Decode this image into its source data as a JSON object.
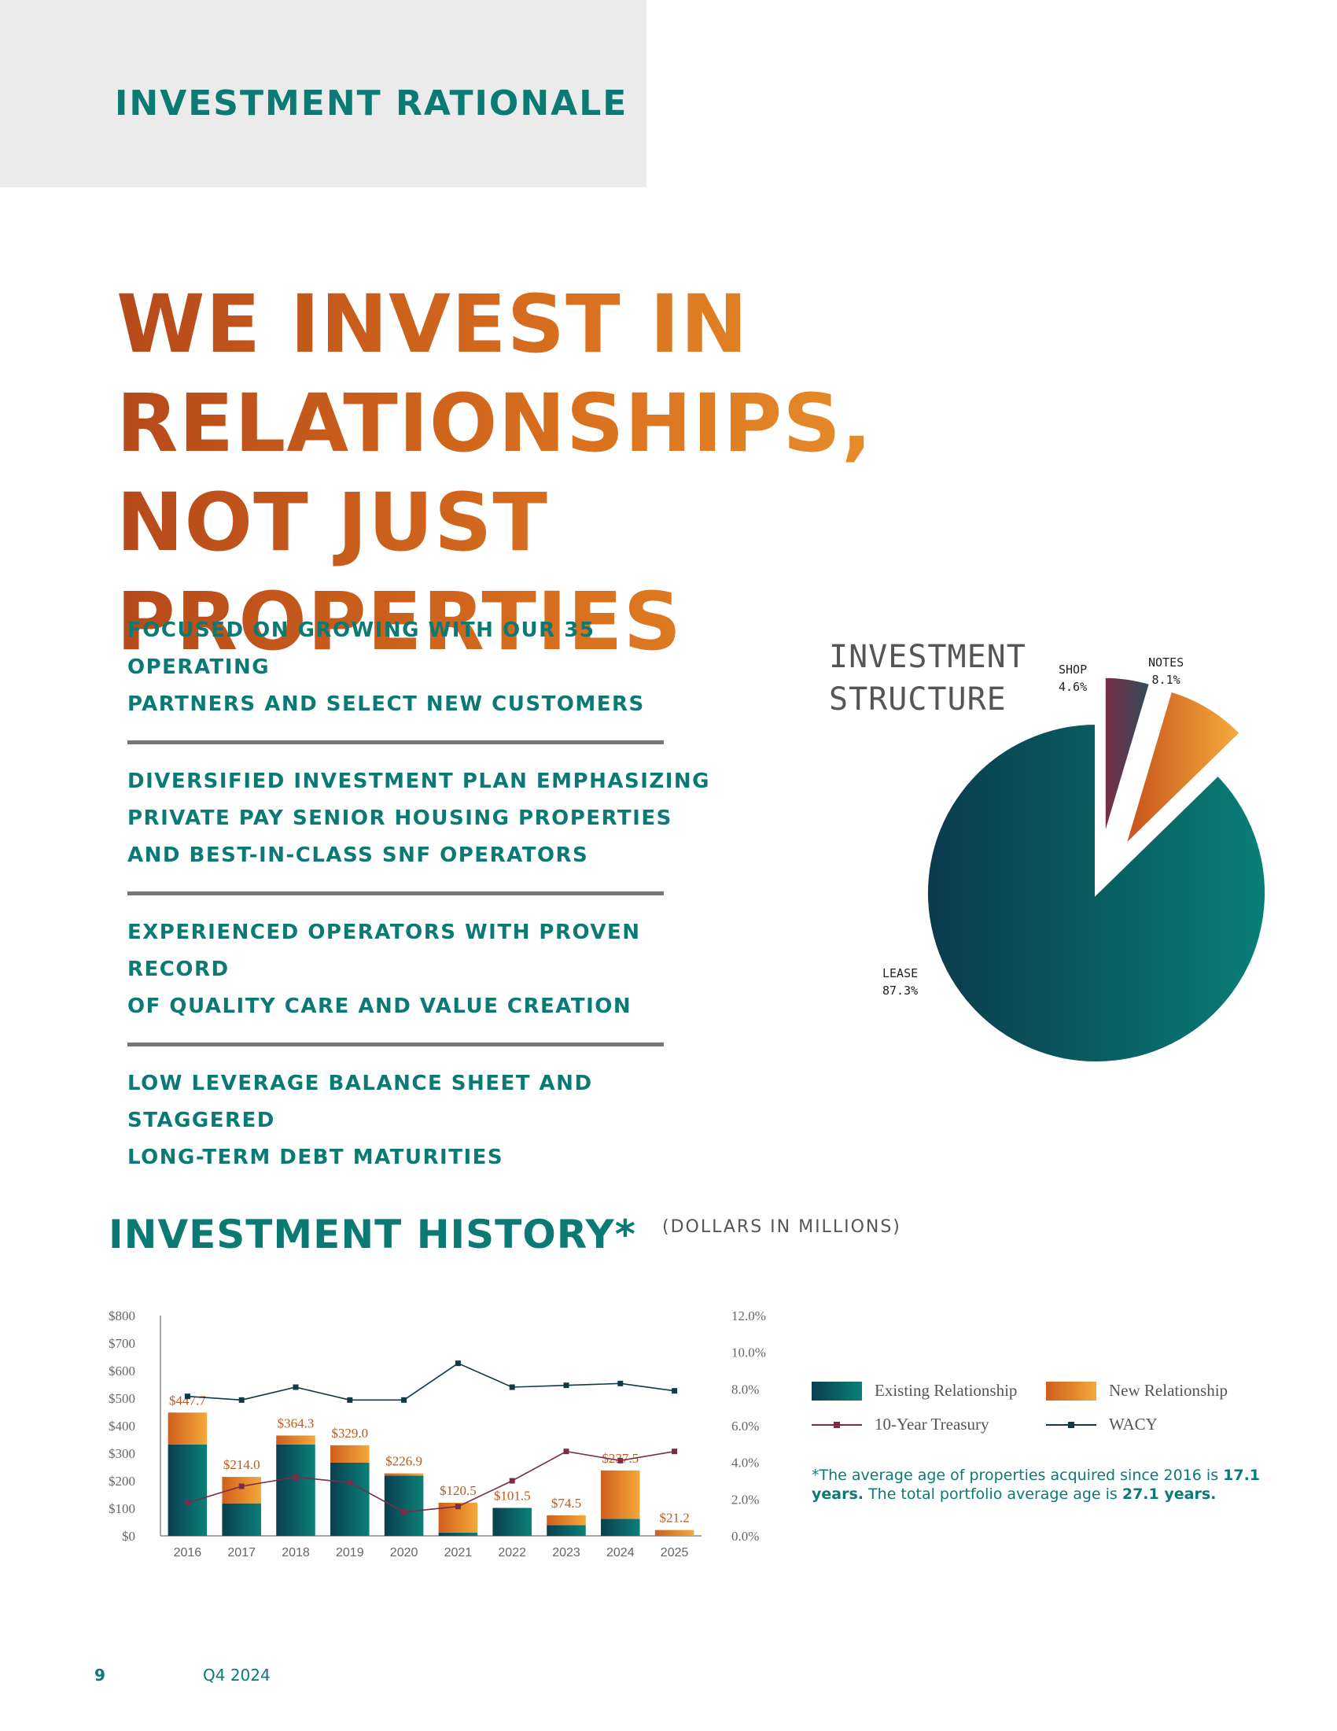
{
  "header": {
    "section_label": "INVESTMENT RATIONALE"
  },
  "headline": {
    "lines": [
      "WE INVEST IN",
      "RELATIONSHIPS,",
      "NOT JUST PROPERTIES"
    ]
  },
  "bullets": [
    {
      "lines": [
        "FOCUSED ON GROWING WITH OUR 35 OPERATING",
        "PARTNERS AND SELECT NEW CUSTOMERS"
      ]
    },
    {
      "lines": [
        "DIVERSIFIED INVESTMENT PLAN EMPHASIZING",
        "PRIVATE PAY SENIOR HOUSING PROPERTIES",
        "AND BEST-IN-CLASS SNF OPERATORS"
      ]
    },
    {
      "lines": [
        "EXPERIENCED OPERATORS WITH PROVEN RECORD",
        "OF QUALITY CARE AND VALUE CREATION"
      ]
    },
    {
      "lines": [
        "LOW LEVERAGE BALANCE SHEET AND STAGGERED",
        "LONG-TERM DEBT MATURITIES"
      ]
    }
  ],
  "investment_history": {
    "title": "INVESTMENT HISTORY*",
    "subtitle": "(DOLLARS IN MILLIONS)",
    "legend": {
      "existing": "Existing Relationship",
      "new": "New Relationship",
      "treasury": "10-Year Treasury",
      "wacy": "WACY"
    },
    "footnote": {
      "part1": "*The average age of properties acquired since 2016 is ",
      "bold1": "17.1 years.",
      "part2": "  The total portfolio average age is ",
      "bold2": "27.1 years."
    }
  },
  "footer": {
    "page_number": "9",
    "quarter": "Q4 2024"
  },
  "colors": {
    "teal": "#0b7a74",
    "teal_dark": "#053d4c",
    "orange": "#d0651c",
    "orange_light": "#f3a33a",
    "maroon": "#7a2d45",
    "wacy_line": "#0e3a4a",
    "treasury_line": "#7a2d45"
  },
  "chart_data": [
    {
      "type": "pie",
      "title": "INVESTMENT STRUCTURE",
      "slices": [
        {
          "label": "LEASE",
          "value": 87.3,
          "display": "87.3%",
          "color": "#0a6f6b",
          "exploded": false,
          "label_pos": "left"
        },
        {
          "label": "SHOP",
          "value": 4.6,
          "display": "4.6%",
          "color": "#7a2d45",
          "exploded": true,
          "label_pos": "top"
        },
        {
          "label": "NOTES",
          "value": 8.1,
          "display": "8.1%",
          "color": "#e0801f",
          "exploded": true,
          "label_pos": "top-right"
        }
      ]
    },
    {
      "type": "bar",
      "stacked": true,
      "categories": [
        "2016",
        "2017",
        "2018",
        "2019",
        "2020",
        "2021",
        "2022",
        "2023",
        "2024",
        "2025"
      ],
      "series": [
        {
          "name": "Existing Relationship",
          "values": [
            332,
            118,
            332,
            266,
            219,
            12,
            101.5,
            39,
            62,
            0
          ]
        },
        {
          "name": "New Relationship",
          "values": [
            115.7,
            96,
            32.3,
            63,
            7.9,
            108.5,
            0,
            35.5,
            175.5,
            21.2
          ]
        }
      ],
      "totals": [
        "$447.7",
        "$214.0",
        "$364.3",
        "$329.0",
        "$226.9",
        "$120.5",
        "$101.5",
        "$74.5",
        "$237.5",
        "$21.2"
      ],
      "yticks_left": [
        "$0",
        "$100",
        "$200",
        "$300",
        "$400",
        "$500",
        "$600",
        "$700",
        "$800"
      ],
      "ylim": [
        0,
        800
      ],
      "yticks_right": [
        "0.0%",
        "2.0%",
        "4.0%",
        "6.0%",
        "8.0%",
        "10.0%",
        "12.0%"
      ],
      "y2lim": [
        0,
        12
      ],
      "lines": [
        {
          "name": "10-Year Treasury",
          "axis": "right",
          "values": [
            1.8,
            2.7,
            3.2,
            2.9,
            1.3,
            1.6,
            3.0,
            4.6,
            4.1,
            4.6
          ]
        },
        {
          "name": "WACY",
          "axis": "right",
          "values": [
            7.6,
            7.4,
            8.1,
            7.4,
            7.4,
            9.4,
            8.1,
            8.2,
            8.3,
            7.9
          ]
        }
      ],
      "legend_placement": "right"
    }
  ]
}
